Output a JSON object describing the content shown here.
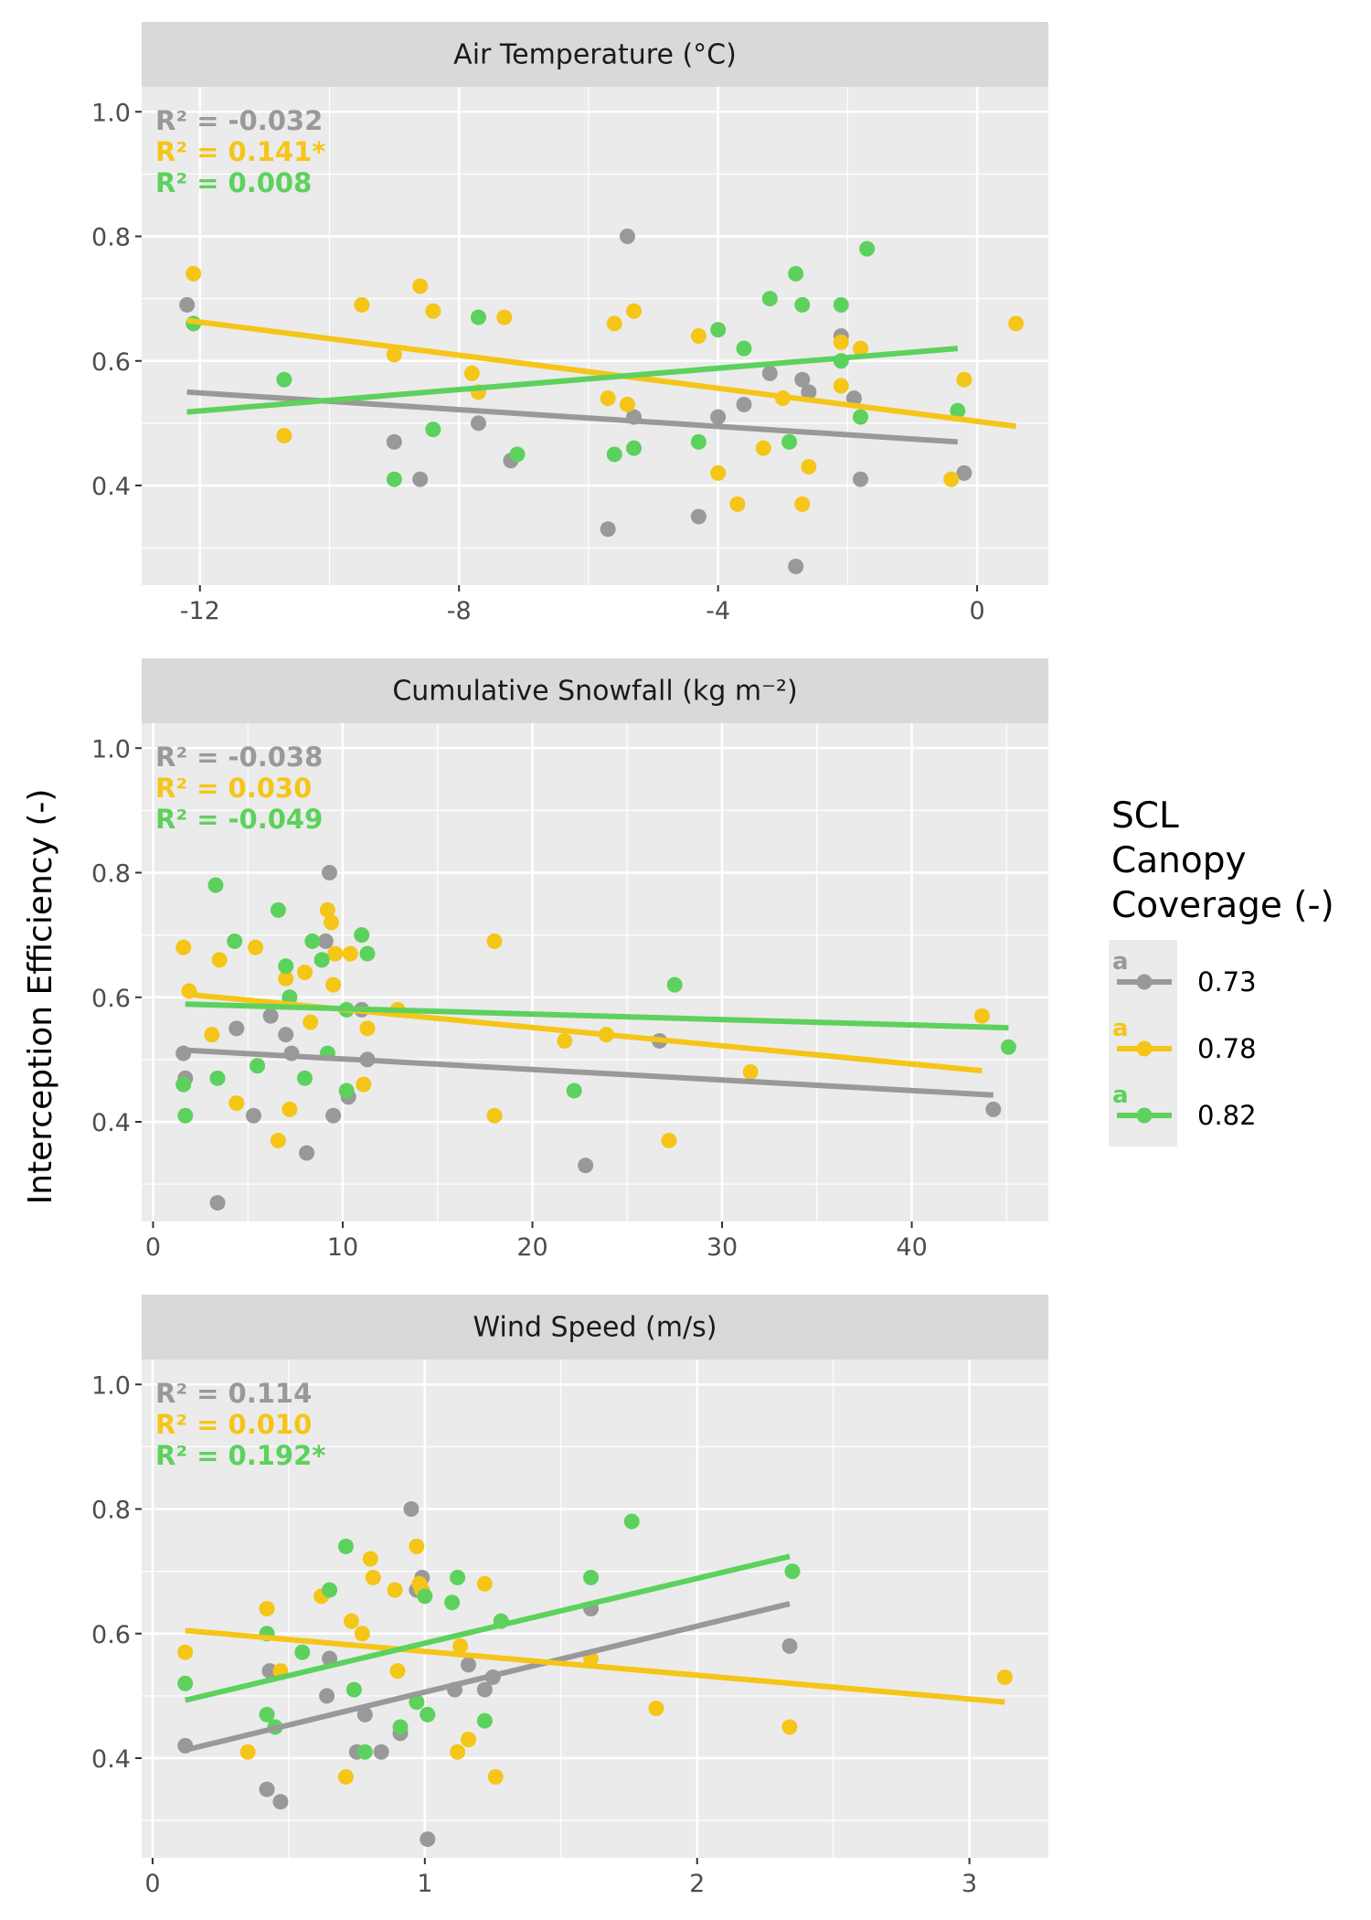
{
  "figure": {
    "y_axis_title": "Interception Efficiency (-)"
  },
  "colors": {
    "0.73": "#999999",
    "0.78": "#F5C518",
    "0.82": "#5DD15D"
  },
  "legend": {
    "title_lines": [
      "SCL",
      "Canopy",
      "Coverage (-)"
    ],
    "items": [
      {
        "label": "0.73",
        "letter": "a",
        "color": "#999999"
      },
      {
        "label": "0.78",
        "letter": "a",
        "color": "#F5C518"
      },
      {
        "label": "0.82",
        "letter": "a",
        "color": "#5DD15D"
      }
    ]
  },
  "chart_data": [
    {
      "type": "scatter",
      "title": "Air Temperature (°C)",
      "xlabel": "",
      "ylabel": "Interception Efficiency (-)",
      "xlim": [
        -12.9,
        1.1
      ],
      "ylim": [
        0.24,
        1.04
      ],
      "x_ticks": [
        -12,
        -8,
        -4,
        0
      ],
      "x_tick_labels": [
        "-12",
        "-8",
        "-4",
        "0"
      ],
      "y_ticks": [
        0.4,
        0.6,
        0.8,
        1.0
      ],
      "y_tick_labels": [
        "0.4",
        "0.6",
        "0.8",
        "1.0"
      ],
      "annotations": [
        "R² = -0.032",
        "R² = 0.141*",
        "R² = 0.008"
      ],
      "series": [
        {
          "name": "0.73",
          "points": [
            [
              -12.2,
              0.69
            ],
            [
              -9.0,
              0.47
            ],
            [
              -8.6,
              0.41
            ],
            [
              -7.7,
              0.5
            ],
            [
              -7.2,
              0.44
            ],
            [
              -5.7,
              0.33
            ],
            [
              -5.4,
              0.8
            ],
            [
              -5.3,
              0.51
            ],
            [
              -4.3,
              0.35
            ],
            [
              -4.0,
              0.51
            ],
            [
              -3.6,
              0.53
            ],
            [
              -3.2,
              0.58
            ],
            [
              -2.8,
              0.27
            ],
            [
              -2.7,
              0.57
            ],
            [
              -2.6,
              0.55
            ],
            [
              -2.1,
              0.64
            ],
            [
              -1.9,
              0.54
            ],
            [
              -1.8,
              0.41
            ],
            [
              -0.2,
              0.42
            ]
          ],
          "fit": [
            [
              -12.2,
              0.55
            ],
            [
              -0.3,
              0.47
            ]
          ]
        },
        {
          "name": "0.78",
          "points": [
            [
              -12.1,
              0.74
            ],
            [
              -10.7,
              0.48
            ],
            [
              -9.5,
              0.69
            ],
            [
              -9.0,
              0.61
            ],
            [
              -8.6,
              0.72
            ],
            [
              -8.4,
              0.68
            ],
            [
              -7.8,
              0.58
            ],
            [
              -7.7,
              0.55
            ],
            [
              -7.3,
              0.67
            ],
            [
              -5.7,
              0.54
            ],
            [
              -5.6,
              0.66
            ],
            [
              -5.4,
              0.53
            ],
            [
              -5.3,
              0.68
            ],
            [
              -4.3,
              0.64
            ],
            [
              -4.0,
              0.42
            ],
            [
              -3.7,
              0.37
            ],
            [
              -3.3,
              0.46
            ],
            [
              -3.0,
              0.54
            ],
            [
              -2.7,
              0.37
            ],
            [
              -2.6,
              0.43
            ],
            [
              -2.1,
              0.63
            ],
            [
              -2.1,
              0.56
            ],
            [
              -1.8,
              0.62
            ],
            [
              -0.4,
              0.41
            ],
            [
              -0.2,
              0.57
            ],
            [
              0.6,
              0.66
            ]
          ],
          "fit": [
            [
              -12.2,
              0.665
            ],
            [
              0.6,
              0.495
            ]
          ]
        },
        {
          "name": "0.82",
          "points": [
            [
              -12.1,
              0.66
            ],
            [
              -10.7,
              0.57
            ],
            [
              -9.0,
              0.41
            ],
            [
              -8.4,
              0.49
            ],
            [
              -7.7,
              0.67
            ],
            [
              -7.1,
              0.45
            ],
            [
              -5.6,
              0.45
            ],
            [
              -5.3,
              0.46
            ],
            [
              -4.3,
              0.47
            ],
            [
              -4.0,
              0.65
            ],
            [
              -3.6,
              0.62
            ],
            [
              -3.2,
              0.7
            ],
            [
              -2.9,
              0.47
            ],
            [
              -2.8,
              0.74
            ],
            [
              -2.7,
              0.69
            ],
            [
              -2.1,
              0.69
            ],
            [
              -2.1,
              0.6
            ],
            [
              -1.8,
              0.51
            ],
            [
              -1.7,
              0.78
            ],
            [
              -0.3,
              0.52
            ]
          ],
          "fit": [
            [
              -12.2,
              0.518
            ],
            [
              -0.3,
              0.62
            ]
          ]
        }
      ]
    },
    {
      "type": "scatter",
      "title": "Cumulative Snowfall (kg m⁻²)",
      "xlabel": "",
      "ylabel": "Interception Efficiency (-)",
      "xlim": [
        -0.6,
        47.2
      ],
      "ylim": [
        0.24,
        1.04
      ],
      "x_ticks": [
        0,
        10,
        20,
        30,
        40
      ],
      "x_tick_labels": [
        "0",
        "10",
        "20",
        "30",
        "40"
      ],
      "y_ticks": [
        0.4,
        0.6,
        0.8,
        1.0
      ],
      "y_tick_labels": [
        "0.4",
        "0.6",
        "0.8",
        "1.0"
      ],
      "annotations": [
        "R² = -0.038",
        "R² = 0.030",
        "R² = -0.049"
      ],
      "series": [
        {
          "name": "0.73",
          "points": [
            [
              1.6,
              0.51
            ],
            [
              1.7,
              0.47
            ],
            [
              3.4,
              0.27
            ],
            [
              4.4,
              0.55
            ],
            [
              5.3,
              0.41
            ],
            [
              6.2,
              0.57
            ],
            [
              7.0,
              0.54
            ],
            [
              7.3,
              0.51
            ],
            [
              8.1,
              0.35
            ],
            [
              8.9,
              0.66
            ],
            [
              9.1,
              0.69
            ],
            [
              9.3,
              0.8
            ],
            [
              9.5,
              0.41
            ],
            [
              10.3,
              0.44
            ],
            [
              11.0,
              0.58
            ],
            [
              11.3,
              0.5
            ],
            [
              22.8,
              0.33
            ],
            [
              26.7,
              0.53
            ],
            [
              44.3,
              0.42
            ]
          ],
          "fit": [
            [
              1.7,
              0.515
            ],
            [
              44.3,
              0.443
            ]
          ]
        },
        {
          "name": "0.78",
          "points": [
            [
              1.6,
              0.68
            ],
            [
              1.9,
              0.61
            ],
            [
              3.1,
              0.54
            ],
            [
              3.5,
              0.66
            ],
            [
              4.4,
              0.43
            ],
            [
              5.4,
              0.68
            ],
            [
              6.6,
              0.37
            ],
            [
              7.0,
              0.63
            ],
            [
              7.2,
              0.42
            ],
            [
              8.0,
              0.64
            ],
            [
              8.3,
              0.56
            ],
            [
              9.2,
              0.74
            ],
            [
              9.4,
              0.72
            ],
            [
              9.5,
              0.62
            ],
            [
              9.6,
              0.67
            ],
            [
              10.4,
              0.67
            ],
            [
              11.1,
              0.46
            ],
            [
              11.3,
              0.55
            ],
            [
              12.9,
              0.58
            ],
            [
              18.0,
              0.69
            ],
            [
              18.0,
              0.41
            ],
            [
              21.7,
              0.53
            ],
            [
              23.9,
              0.54
            ],
            [
              27.2,
              0.37
            ],
            [
              31.5,
              0.48
            ],
            [
              43.7,
              0.57
            ]
          ],
          "fit": [
            [
              1.7,
              0.605
            ],
            [
              43.7,
              0.482
            ]
          ]
        },
        {
          "name": "0.82",
          "points": [
            [
              1.6,
              0.46
            ],
            [
              1.7,
              0.41
            ],
            [
              3.3,
              0.78
            ],
            [
              3.4,
              0.47
            ],
            [
              4.3,
              0.69
            ],
            [
              5.5,
              0.49
            ],
            [
              6.6,
              0.74
            ],
            [
              7.0,
              0.65
            ],
            [
              7.2,
              0.6
            ],
            [
              8.0,
              0.47
            ],
            [
              8.4,
              0.69
            ],
            [
              8.9,
              0.66
            ],
            [
              9.2,
              0.51
            ],
            [
              10.2,
              0.45
            ],
            [
              10.2,
              0.58
            ],
            [
              11.0,
              0.7
            ],
            [
              11.3,
              0.67
            ],
            [
              22.2,
              0.45
            ],
            [
              27.5,
              0.62
            ],
            [
              45.1,
              0.52
            ]
          ],
          "fit": [
            [
              1.7,
              0.589
            ],
            [
              45.1,
              0.551
            ]
          ]
        }
      ]
    },
    {
      "type": "scatter",
      "title": "Wind Speed (m/s)",
      "xlabel": "",
      "ylabel": "Interception Efficiency (-)",
      "xlim": [
        -0.04,
        3.29
      ],
      "ylim": [
        0.24,
        1.04
      ],
      "x_ticks": [
        0,
        1,
        2,
        3
      ],
      "x_tick_labels": [
        "0",
        "1",
        "2",
        "3"
      ],
      "y_ticks": [
        0.4,
        0.6,
        0.8,
        1.0
      ],
      "y_tick_labels": [
        "0.4",
        "0.6",
        "0.8",
        "1.0"
      ],
      "annotations": [
        "R² = 0.114",
        "R² = 0.010",
        "R² = 0.192*"
      ],
      "series": [
        {
          "name": "0.73",
          "points": [
            [
              0.12,
              0.42
            ],
            [
              0.42,
              0.35
            ],
            [
              0.43,
              0.54
            ],
            [
              0.47,
              0.33
            ],
            [
              0.64,
              0.5
            ],
            [
              0.65,
              0.56
            ],
            [
              0.75,
              0.41
            ],
            [
              0.78,
              0.47
            ],
            [
              0.84,
              0.41
            ],
            [
              0.91,
              0.44
            ],
            [
              0.95,
              0.8
            ],
            [
              0.97,
              0.67
            ],
            [
              0.99,
              0.69
            ],
            [
              1.01,
              0.27
            ],
            [
              1.11,
              0.51
            ],
            [
              1.16,
              0.55
            ],
            [
              1.22,
              0.51
            ],
            [
              1.25,
              0.53
            ],
            [
              1.61,
              0.64
            ],
            [
              2.34,
              0.58
            ]
          ],
          "fit": [
            [
              0.12,
              0.413
            ],
            [
              2.34,
              0.648
            ]
          ]
        },
        {
          "name": "0.78",
          "points": [
            [
              0.12,
              0.57
            ],
            [
              0.35,
              0.41
            ],
            [
              0.42,
              0.64
            ],
            [
              0.47,
              0.54
            ],
            [
              0.62,
              0.66
            ],
            [
              0.71,
              0.37
            ],
            [
              0.73,
              0.62
            ],
            [
              0.77,
              0.6
            ],
            [
              0.8,
              0.72
            ],
            [
              0.81,
              0.69
            ],
            [
              0.89,
              0.67
            ],
            [
              0.9,
              0.54
            ],
            [
              0.97,
              0.74
            ],
            [
              0.98,
              0.68
            ],
            [
              0.99,
              0.67
            ],
            [
              1.12,
              0.41
            ],
            [
              1.13,
              0.58
            ],
            [
              1.16,
              0.43
            ],
            [
              1.22,
              0.68
            ],
            [
              1.26,
              0.37
            ],
            [
              1.61,
              0.56
            ],
            [
              1.85,
              0.48
            ],
            [
              2.34,
              0.45
            ],
            [
              3.13,
              0.53
            ]
          ],
          "fit": [
            [
              0.12,
              0.605
            ],
            [
              3.13,
              0.49
            ]
          ]
        },
        {
          "name": "0.82",
          "points": [
            [
              0.12,
              0.52
            ],
            [
              0.42,
              0.6
            ],
            [
              0.42,
              0.47
            ],
            [
              0.45,
              0.45
            ],
            [
              0.55,
              0.57
            ],
            [
              0.65,
              0.67
            ],
            [
              0.71,
              0.74
            ],
            [
              0.74,
              0.51
            ],
            [
              0.78,
              0.41
            ],
            [
              0.91,
              0.45
            ],
            [
              0.97,
              0.49
            ],
            [
              1.0,
              0.66
            ],
            [
              1.01,
              0.47
            ],
            [
              1.1,
              0.65
            ],
            [
              1.12,
              0.69
            ],
            [
              1.22,
              0.46
            ],
            [
              1.28,
              0.62
            ],
            [
              1.61,
              0.69
            ],
            [
              1.76,
              0.78
            ],
            [
              2.35,
              0.7
            ]
          ],
          "fit": [
            [
              0.12,
              0.493
            ],
            [
              2.34,
              0.724
            ]
          ]
        }
      ]
    }
  ]
}
